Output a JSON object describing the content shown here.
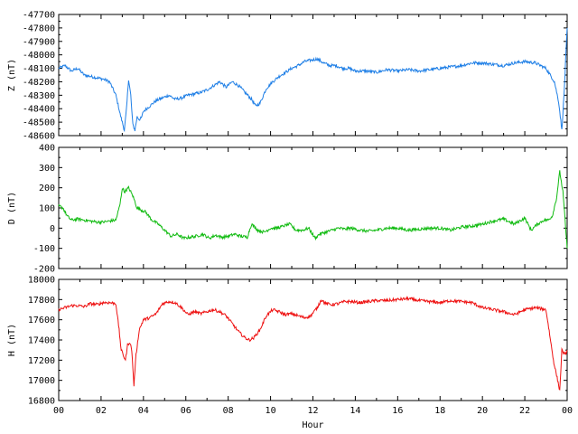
{
  "chart_data": [
    {
      "type": "line",
      "ylabel": "Z (nT)",
      "ylim": [
        -48600,
        -47700
      ],
      "yticks": [
        -47700,
        -47800,
        -47900,
        -48000,
        -48100,
        -48200,
        -48300,
        -48400,
        -48500,
        -48600
      ],
      "xlim": [
        0,
        24
      ],
      "color": "#1f7fe6",
      "series": [
        {
          "x": [
            0,
            0.3,
            0.6,
            0.9,
            1.2,
            1.5,
            1.8,
            2.1,
            2.4,
            2.7,
            2.9,
            3.0,
            3.1,
            3.2,
            3.3,
            3.4,
            3.5,
            3.6,
            3.7,
            3.8,
            3.9,
            4.0,
            4.3,
            4.6,
            4.9,
            5.2,
            5.5,
            5.8,
            6.1,
            6.4,
            6.7,
            7.0,
            7.3,
            7.6,
            7.9,
            8.2,
            8.5,
            8.8,
            9.1,
            9.3,
            9.5,
            9.8,
            10.1,
            10.4,
            10.7,
            11.0,
            11.3,
            11.6,
            11.9,
            12.2,
            12.5,
            12.8,
            13.1,
            13.4,
            13.7,
            14.0,
            14.5,
            15.0,
            15.5,
            16.0,
            16.5,
            17.0,
            17.5,
            18.0,
            18.5,
            19.0,
            19.5,
            20.0,
            20.5,
            21.0,
            21.5,
            22.0,
            22.5,
            23.0,
            23.2,
            23.4,
            23.6,
            23.75,
            23.85,
            24.0
          ],
          "values": [
            -48100,
            -48080,
            -48120,
            -48100,
            -48150,
            -48160,
            -48170,
            -48180,
            -48200,
            -48300,
            -48440,
            -48500,
            -48560,
            -48400,
            -48180,
            -48300,
            -48520,
            -48560,
            -48460,
            -48480,
            -48470,
            -48420,
            -48380,
            -48340,
            -48320,
            -48300,
            -48330,
            -48320,
            -48300,
            -48290,
            -48280,
            -48260,
            -48230,
            -48200,
            -48240,
            -48200,
            -48230,
            -48280,
            -48330,
            -48380,
            -48360,
            -48250,
            -48200,
            -48160,
            -48130,
            -48100,
            -48080,
            -48050,
            -48040,
            -48030,
            -48060,
            -48080,
            -48080,
            -48100,
            -48100,
            -48120,
            -48120,
            -48130,
            -48110,
            -48120,
            -48110,
            -48120,
            -48110,
            -48100,
            -48090,
            -48080,
            -48060,
            -48060,
            -48070,
            -48080,
            -48060,
            -48050,
            -48060,
            -48100,
            -48150,
            -48200,
            -48350,
            -48560,
            -48300,
            -47800
          ]
        }
      ]
    },
    {
      "type": "line",
      "ylabel": "D (nT)",
      "ylim": [
        -200,
        400
      ],
      "yticks": [
        400,
        300,
        200,
        100,
        0,
        -100,
        -200
      ],
      "xlim": [
        0,
        24
      ],
      "color": "#11bb11",
      "series": [
        {
          "x": [
            0,
            0.2,
            0.4,
            0.6,
            0.9,
            1.2,
            1.5,
            1.8,
            2.1,
            2.4,
            2.7,
            2.9,
            3.0,
            3.1,
            3.3,
            3.5,
            3.7,
            3.9,
            4.1,
            4.4,
            4.7,
            5.0,
            5.3,
            5.6,
            5.9,
            6.2,
            6.5,
            6.8,
            7.1,
            7.4,
            7.7,
            8.0,
            8.3,
            8.6,
            8.9,
            9.1,
            9.4,
            9.7,
            10.0,
            10.3,
            10.6,
            10.9,
            11.2,
            11.5,
            11.8,
            12.1,
            12.3,
            12.6,
            12.9,
            13.2,
            13.5,
            13.8,
            14.2,
            14.6,
            15.0,
            15.5,
            16.0,
            16.5,
            17.0,
            17.5,
            18.0,
            18.5,
            19.0,
            19.5,
            20.0,
            20.5,
            21.0,
            21.5,
            22.0,
            22.3,
            22.6,
            22.9,
            23.1,
            23.3,
            23.5,
            23.65,
            23.8,
            24.0
          ],
          "values": [
            110,
            100,
            60,
            40,
            45,
            40,
            35,
            30,
            30,
            35,
            40,
            120,
            200,
            180,
            200,
            160,
            100,
            90,
            80,
            40,
            20,
            -10,
            -40,
            -30,
            -50,
            -45,
            -40,
            -30,
            -50,
            -35,
            -45,
            -40,
            -30,
            -40,
            -45,
            20,
            -10,
            -20,
            0,
            0,
            10,
            20,
            -10,
            -10,
            0,
            -50,
            -30,
            -20,
            -10,
            0,
            -5,
            0,
            -10,
            -15,
            -10,
            0,
            0,
            -10,
            -5,
            0,
            0,
            -10,
            5,
            10,
            20,
            35,
            45,
            20,
            50,
            -10,
            20,
            40,
            40,
            60,
            150,
            280,
            180,
            -100
          ]
        }
      ]
    },
    {
      "type": "line",
      "ylabel": "H (nT)",
      "xlabel": "Hour",
      "ylim": [
        16800,
        18000
      ],
      "yticks": [
        18000,
        17800,
        17600,
        17400,
        17200,
        17000,
        16800
      ],
      "xlim": [
        0,
        24
      ],
      "xticks": [
        "00",
        "02",
        "04",
        "06",
        "08",
        "10",
        "12",
        "14",
        "16",
        "18",
        "20",
        "22",
        "00"
      ],
      "color": "#ee1111",
      "series": [
        {
          "x": [
            0,
            0.3,
            0.6,
            0.9,
            1.2,
            1.5,
            1.8,
            2.1,
            2.4,
            2.7,
            2.85,
            2.95,
            3.05,
            3.15,
            3.25,
            3.35,
            3.45,
            3.55,
            3.65,
            3.8,
            4.0,
            4.3,
            4.6,
            4.9,
            5.2,
            5.5,
            5.8,
            6.1,
            6.4,
            6.7,
            7.0,
            7.3,
            7.6,
            7.9,
            8.2,
            8.5,
            8.8,
            9.0,
            9.2,
            9.5,
            9.8,
            10.1,
            10.4,
            10.7,
            11.0,
            11.3,
            11.6,
            11.9,
            12.2,
            12.4,
            12.6,
            12.9,
            13.2,
            13.5,
            13.8,
            14.2,
            14.6,
            15.0,
            15.5,
            16.0,
            16.5,
            17.0,
            17.5,
            18.0,
            18.5,
            19.0,
            19.5,
            20.0,
            20.5,
            21.0,
            21.5,
            22.0,
            22.5,
            23.0,
            23.2,
            23.35,
            23.5,
            23.65,
            23.75,
            23.9,
            24.0
          ],
          "values": [
            17700,
            17720,
            17740,
            17740,
            17730,
            17760,
            17750,
            17770,
            17770,
            17760,
            17500,
            17300,
            17250,
            17200,
            17350,
            17380,
            17300,
            16950,
            17250,
            17500,
            17600,
            17620,
            17660,
            17760,
            17780,
            17770,
            17720,
            17650,
            17680,
            17660,
            17680,
            17700,
            17680,
            17640,
            17560,
            17480,
            17420,
            17400,
            17420,
            17500,
            17640,
            17700,
            17680,
            17650,
            17660,
            17640,
            17620,
            17640,
            17720,
            17800,
            17760,
            17750,
            17760,
            17780,
            17780,
            17770,
            17780,
            17790,
            17790,
            17800,
            17810,
            17790,
            17780,
            17770,
            17790,
            17780,
            17770,
            17720,
            17700,
            17680,
            17650,
            17700,
            17720,
            17700,
            17420,
            17200,
            17050,
            16900,
            17300,
            17250,
            17300
          ]
        }
      ]
    }
  ]
}
